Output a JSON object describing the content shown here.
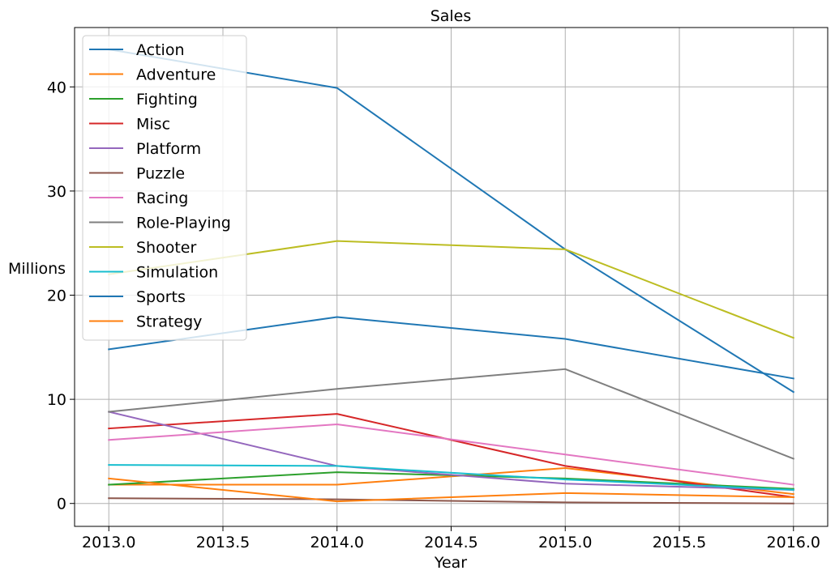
{
  "chart_data": {
    "type": "line",
    "title": "Sales",
    "xlabel": "Year",
    "ylabel": "Millions",
    "x": [
      2013,
      2014,
      2015,
      2016
    ],
    "x_ticks": [
      2013.0,
      2013.5,
      2014.0,
      2014.5,
      2015.0,
      2015.5,
      2016.0
    ],
    "x_tick_labels": [
      "2013.0",
      "2013.5",
      "2014.0",
      "2014.5",
      "2015.0",
      "2015.5",
      "2016.0"
    ],
    "y_ticks": [
      0,
      10,
      20,
      30,
      40
    ],
    "y_tick_labels": [
      "0",
      "10",
      "20",
      "30",
      "40"
    ],
    "xlim": [
      2012.85,
      2016.15
    ],
    "ylim": [
      -2.2,
      45.7
    ],
    "grid": true,
    "legend_position": "upper-left",
    "series": [
      {
        "name": "Action",
        "color": "#1f77b4",
        "values": [
          43.6,
          39.9,
          24.4,
          10.7
        ]
      },
      {
        "name": "Adventure",
        "color": "#ff7f0e",
        "values": [
          1.8,
          1.8,
          3.4,
          0.9
        ]
      },
      {
        "name": "Fighting",
        "color": "#2ca02c",
        "values": [
          1.8,
          3.0,
          2.4,
          1.4
        ]
      },
      {
        "name": "Misc",
        "color": "#d62728",
        "values": [
          7.2,
          8.6,
          3.6,
          0.6
        ]
      },
      {
        "name": "Platform",
        "color": "#9467bd",
        "values": [
          8.8,
          3.6,
          1.9,
          1.3
        ]
      },
      {
        "name": "Puzzle",
        "color": "#8c564b",
        "values": [
          0.5,
          0.4,
          0.1,
          0.0
        ]
      },
      {
        "name": "Racing",
        "color": "#e377c2",
        "values": [
          6.1,
          7.6,
          4.7,
          1.8
        ]
      },
      {
        "name": "Role-Playing",
        "color": "#7f7f7f",
        "values": [
          8.8,
          11.0,
          12.9,
          4.3
        ]
      },
      {
        "name": "Shooter",
        "color": "#bcbd22",
        "values": [
          22.0,
          25.2,
          24.4,
          15.9
        ]
      },
      {
        "name": "Simulation",
        "color": "#17becf",
        "values": [
          3.7,
          3.6,
          2.3,
          1.3
        ]
      },
      {
        "name": "Sports",
        "color": "#1f77b4",
        "values": [
          14.8,
          17.9,
          15.8,
          12.0
        ]
      },
      {
        "name": "Strategy",
        "color": "#ff7f0e",
        "values": [
          2.4,
          0.2,
          1.0,
          0.6
        ]
      }
    ]
  }
}
